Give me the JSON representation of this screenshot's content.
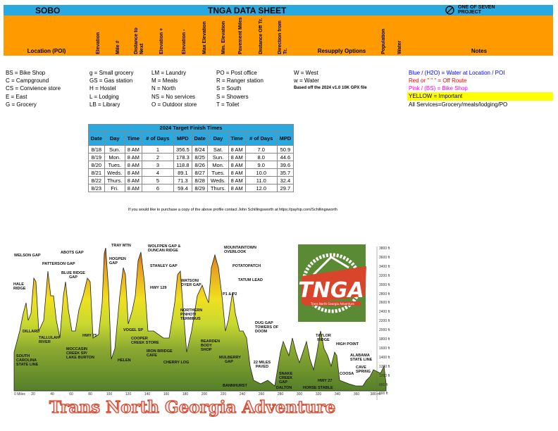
{
  "header": {
    "direction": "SOBO",
    "title": "TNGA DATA SHEET",
    "brand": "ONE OF SEVEN PROJECT",
    "brand_icon": "one-of-seven-logo-icon"
  },
  "columns": {
    "location": "Location (POI)",
    "elevation": "Elevation",
    "mile": "Mile #",
    "distance_next": "Distance to Next",
    "elev_plus": "Elevation +",
    "elev_minus": "Elevation -",
    "max_elev": "Max Elevation",
    "min_elev": "Min. Elevation",
    "pavement": "Pavement Miles",
    "dist_off": "Distance Off Tr.",
    "direction": "Direction from Tr.",
    "resupply": "Resupply Options",
    "population": "Population",
    "water": "Water",
    "notes": "Notes"
  },
  "legend": [
    [
      "BS = Bike Shop",
      "C = Campground",
      "CS = Convience store",
      "E = East",
      "G = Grocery"
    ],
    [
      "g = Small grocery",
      "GS = Gas station",
      "H = Hostel",
      "L = Lodging",
      "LB = Library"
    ],
    [
      "LM = Laundry",
      "M = Meals",
      "N = North",
      "NS = No services",
      "O = Outdoor store"
    ],
    [
      "PO = Post office",
      "R = Ranger station",
      "S = South",
      "S = Showers",
      "T = Toilet"
    ],
    [
      "W = West",
      "w = Water",
      "Based off the 2024 v1.0 10K GPX file"
    ]
  ],
  "notes_legend": {
    "blue": "Blue / (H2O) = Water at Location / POI",
    "red": "Red or \" \" \" = Off Route",
    "pink": "Pink / (BS) = Bike Shop",
    "yellow": "YELLOW = Important",
    "all": "All Services=Grocery/meals/lodging/PO"
  },
  "colors": {
    "header_blue": "#29a9e0",
    "header_orange": "#ff9a00",
    "blue_text": "#0000ff",
    "red_text": "#ff0000",
    "pink_text": "#ff00ff",
    "yellow_highlight": "#ffff00"
  },
  "finish_table": {
    "title": "2024 Target Finish Times",
    "headers": [
      "Date",
      "Day",
      "Time",
      "# of Days",
      "MPD",
      "Date",
      "Day",
      "Time",
      "# of Days",
      "MPD"
    ],
    "rows": [
      [
        "8/18",
        "Sun.",
        "8 AM",
        "1",
        "356.5",
        "8/24",
        "Sat.",
        "8 AM",
        "7.0",
        "50.9"
      ],
      [
        "8/19",
        "Mon.",
        "8 AM",
        "2",
        "178.3",
        "8/25",
        "Sun.",
        "8 AM",
        "8.0",
        "44.6"
      ],
      [
        "8/20",
        "Tues.",
        "8 AM",
        "3",
        "118.8",
        "8/26",
        "Mon.",
        "8 AM",
        "9.0",
        "39.6"
      ],
      [
        "8/21",
        "Weds.",
        "8 AM",
        "4",
        "89.1",
        "8/27",
        "Tues.",
        "8 AM",
        "10.0",
        "35.7"
      ],
      [
        "8/22",
        "Thurs.",
        "8 AM",
        "5",
        "71.3",
        "8/28",
        "Weds.",
        "8 AM",
        "11.0",
        "32.4"
      ],
      [
        "8/23",
        "Fri.",
        "8 AM",
        "6",
        "59.4",
        "8/29",
        "Thurs.",
        "8 AM",
        "12.0",
        "29.7"
      ]
    ]
  },
  "purchase_note": "If you would like to purchase a copy of the above profile contact John Schillingsworth at https://payhip.com/Schillingsworth",
  "profile": {
    "y_ticks": [
      "3800 ft",
      "3600 ft",
      "3400 ft",
      "3200 ft",
      "3000 ft",
      "2800 ft",
      "2600 ft",
      "2400 ft",
      "2200 ft",
      "2000 ft",
      "1800 ft",
      "1600 ft",
      "1400 ft",
      "1200 ft",
      "1000 ft",
      "800 ft",
      "600 ft"
    ],
    "x_ticks": [
      "0 Miles",
      "20",
      "40",
      "60",
      "80",
      "100",
      "120",
      "140",
      "160",
      "180",
      "200",
      "220",
      "240",
      "260",
      "280",
      "300",
      "320",
      "340",
      "360",
      "380 mi"
    ],
    "callouts": [
      "WELSON GAP",
      "PATTERSON GAP",
      "ABOTS GAP",
      "BLUE RIDGE GAP",
      "TRAY MTN",
      "HOGPEN GAP",
      "WOLFPEN GAP & DUNCAN RIDGE",
      "STANLEY GAP",
      "HWY 129",
      "MOUNTAINTOWN OVERLOOK",
      "POTATOPATCH",
      "WATSON/ DYER GAP",
      "TATUM LEAD",
      "P1 & P2",
      "NORTHERN PINHOTI TERMINUS",
      "HALE RIDGE",
      "DILLARD",
      "TALLULAH RIVER",
      "HWY 75",
      "MOCCASIN CREEK SP/ LAKE BURTON",
      "VOGEL SP",
      "COOPER CREEK STORE",
      "IRON BRIDGE CAFE",
      "CHERRY LOG",
      "HELEN",
      "SOUTH CAROLINA STATE LINE",
      "BEARDEN BODY SHOP",
      "MULBERRY GAP",
      "DUG GAP TOWERS OF DOOM",
      "TAYLOR RIDGE",
      "HIGH POINT",
      "22 MILES PAVED",
      "SNAKE CREEK GAP",
      "HWY 27",
      "COOSA",
      "CAVE SPRING",
      "ALABAMA STATE LINE",
      "BANNHURST",
      "DALTON",
      "HORSE STABLE"
    ],
    "logo_text": "TNGA",
    "logo_sub": "Trans North Georgia Adventure",
    "banner_title": "Trans North Georgia Adventure"
  }
}
